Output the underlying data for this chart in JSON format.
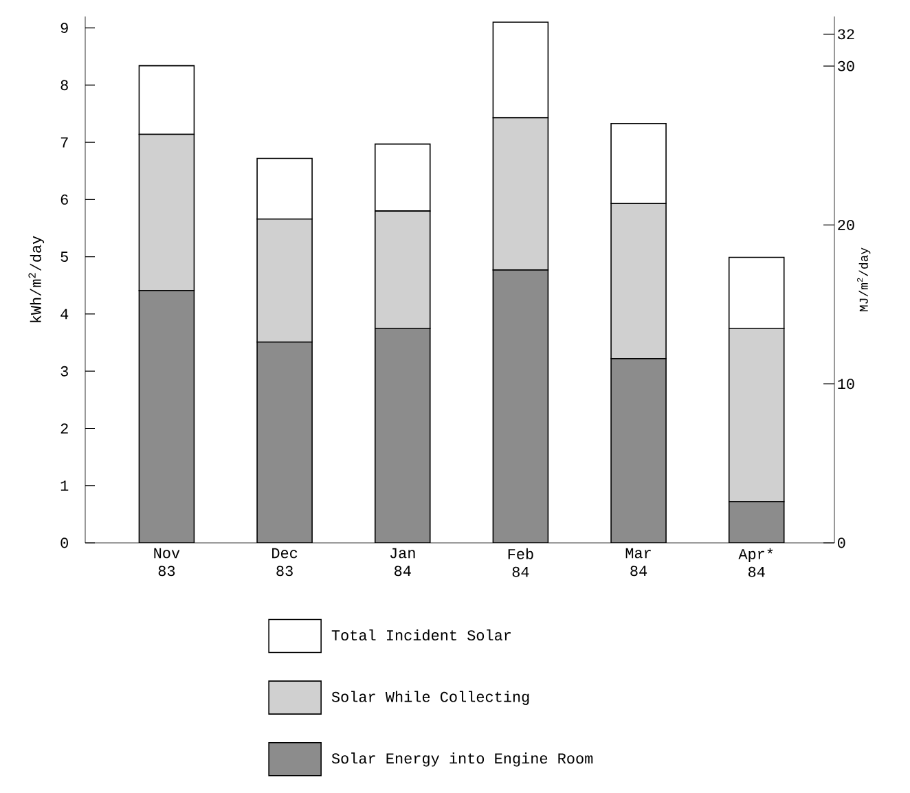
{
  "chart_data": {
    "type": "bar",
    "stacked": true,
    "categories": [
      "Nov 83",
      "Dec 83",
      "Jan 84",
      "Feb 84",
      "Mar 84",
      "Apr* 84"
    ],
    "series": [
      {
        "name": "Solar Energy into Engine Room",
        "color": "#8c8c8c",
        "values": [
          4.41,
          3.51,
          3.75,
          4.77,
          3.22,
          0.72
        ]
      },
      {
        "name": "Solar While Collecting",
        "color": "#d0d0d0",
        "values": [
          2.73,
          2.15,
          2.05,
          2.66,
          2.71,
          3.03
        ]
      },
      {
        "name": "Total Incident Solar",
        "color": "#ffffff",
        "values": [
          1.2,
          1.06,
          1.17,
          1.67,
          1.4,
          1.24
        ]
      }
    ],
    "ylabel": "kWh/m$^{2}$/day",
    "y2label": "MJ/m$^{2}$/day",
    "ylim": [
      0,
      9.2
    ],
    "yticks": [
      0,
      1,
      2,
      3,
      4,
      5,
      6,
      7,
      8,
      9
    ],
    "y2lim": [
      0,
      33.12
    ],
    "y2ticks": [
      0,
      10,
      20,
      30,
      32
    ],
    "legend": "bottom",
    "grid": false
  }
}
